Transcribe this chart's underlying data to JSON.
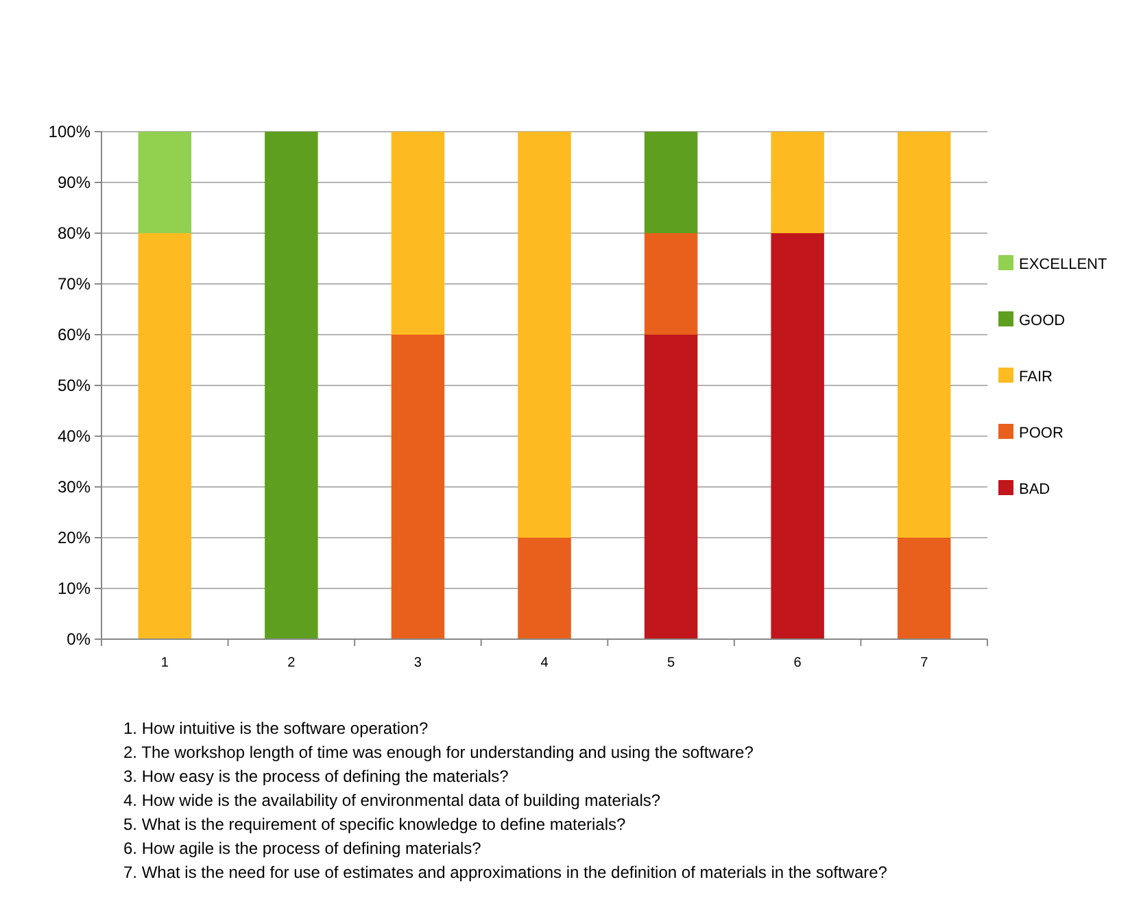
{
  "chart_data": {
    "type": "bar",
    "stacked": true,
    "categories": [
      "1",
      "2",
      "3",
      "4",
      "5",
      "6",
      "7"
    ],
    "series": [
      {
        "name": "BAD",
        "color": "#c0161c",
        "values": [
          0,
          0,
          0,
          0,
          60,
          80,
          0
        ]
      },
      {
        "name": "POOR",
        "color": "#e8601c",
        "values": [
          0,
          0,
          60,
          20,
          20,
          0,
          20
        ]
      },
      {
        "name": "FAIR",
        "color": "#fdbb21",
        "values": [
          80,
          0,
          40,
          80,
          0,
          20,
          80
        ]
      },
      {
        "name": "GOOD",
        "color": "#5f9f1f",
        "values": [
          0,
          100,
          0,
          0,
          20,
          0,
          0
        ]
      },
      {
        "name": "EXCELLENT",
        "color": "#92d050",
        "values": [
          20,
          0,
          0,
          0,
          0,
          0,
          0
        ]
      }
    ],
    "ylim": [
      0,
      100
    ],
    "yticks": [
      {
        "value": 0,
        "label": "0%"
      },
      {
        "value": 10,
        "label": "10%"
      },
      {
        "value": 20,
        "label": "20%"
      },
      {
        "value": 30,
        "label": "30%"
      },
      {
        "value": 40,
        "label": "40%"
      },
      {
        "value": 50,
        "label": "50%"
      },
      {
        "value": 60,
        "label": "60%"
      },
      {
        "value": 70,
        "label": "70%"
      },
      {
        "value": 80,
        "label": "80%"
      },
      {
        "value": 90,
        "label": "90%"
      },
      {
        "value": 100,
        "label": "100%"
      }
    ],
    "grid": "y",
    "legend": "right",
    "annotations": [
      "1. How intuitive is the software operation?",
      "2. The workshop length of time was enough for understanding and using the software?",
      "3. How easy is the process of defining the materials?",
      "4. How wide is the availability of environmental data of building materials?",
      "5. What is the requirement of specific knowledge to define materials?",
      "6. How agile is the process of defining materials?",
      "7. What is the need for use of estimates and approximations in the definition of materials in the software?"
    ]
  }
}
